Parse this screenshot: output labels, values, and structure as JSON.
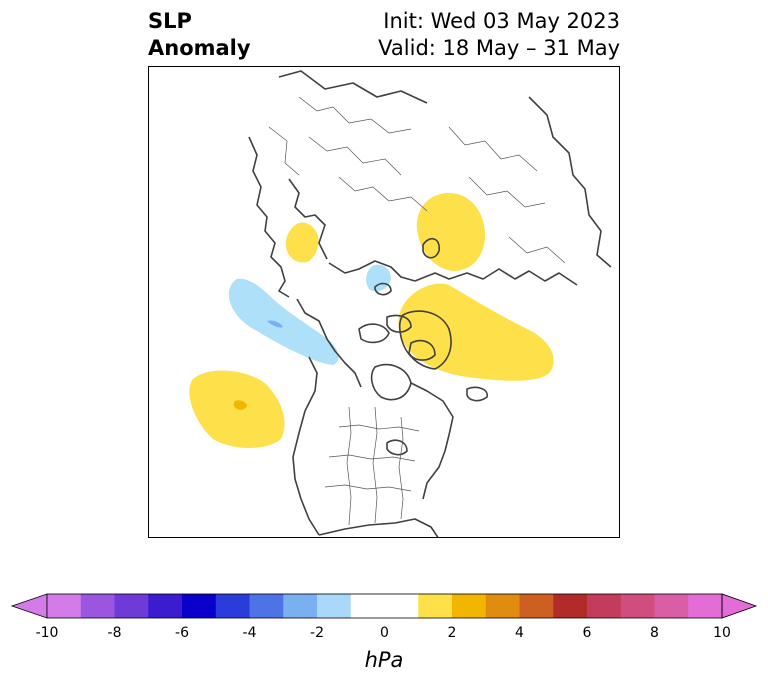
{
  "title": {
    "variable_line1": "SLP",
    "variable_line2": "Anomaly",
    "init_line": "Init: Wed 03 May 2023",
    "valid_line": "Valid: 18 May – 31 May"
  },
  "map": {
    "projection": "polar stereographic, North Pole centered",
    "anomaly_regions": [
      {
        "region": "Scandinavia / northwest Europe",
        "sign": "positive",
        "level": "1-2 hPa"
      },
      {
        "region": "West Siberia / Ural region",
        "sign": "positive",
        "level": "1-2 hPa"
      },
      {
        "region": "Barents / Kara Sea",
        "sign": "negative",
        "level": "-1 to -2 hPa"
      },
      {
        "region": "Bering Sea / Alaska / Beaufort",
        "sign": "negative",
        "level": "-1 to -3 hPa"
      },
      {
        "region": "Canadian Arctic / Greenland",
        "sign": "positive",
        "level": "1-2 hPa"
      },
      {
        "region": "Northeast Pacific",
        "sign": "positive",
        "level": "1-3 hPa"
      }
    ]
  },
  "colorbar": {
    "unit": "hPa",
    "tick_labels": [
      "-10",
      "-8",
      "-6",
      "-4",
      "-2",
      "0",
      "2",
      "4",
      "6",
      "8",
      "10"
    ],
    "colors": [
      "#d37be6",
      "#9b56df",
      "#6e3ad8",
      "#3c1ccf",
      "#0a00cc",
      "#2a3ddb",
      "#4d73e6",
      "#7ab0f0",
      "#a9d8f8",
      "#ffffff",
      "#ffffff",
      "#fde04a",
      "#f2b600",
      "#e08c10",
      "#cd6020",
      "#b32a2a",
      "#c43c5c",
      "#d04e7e",
      "#da5ea6",
      "#e46cd6"
    ],
    "extend": "both"
  }
}
